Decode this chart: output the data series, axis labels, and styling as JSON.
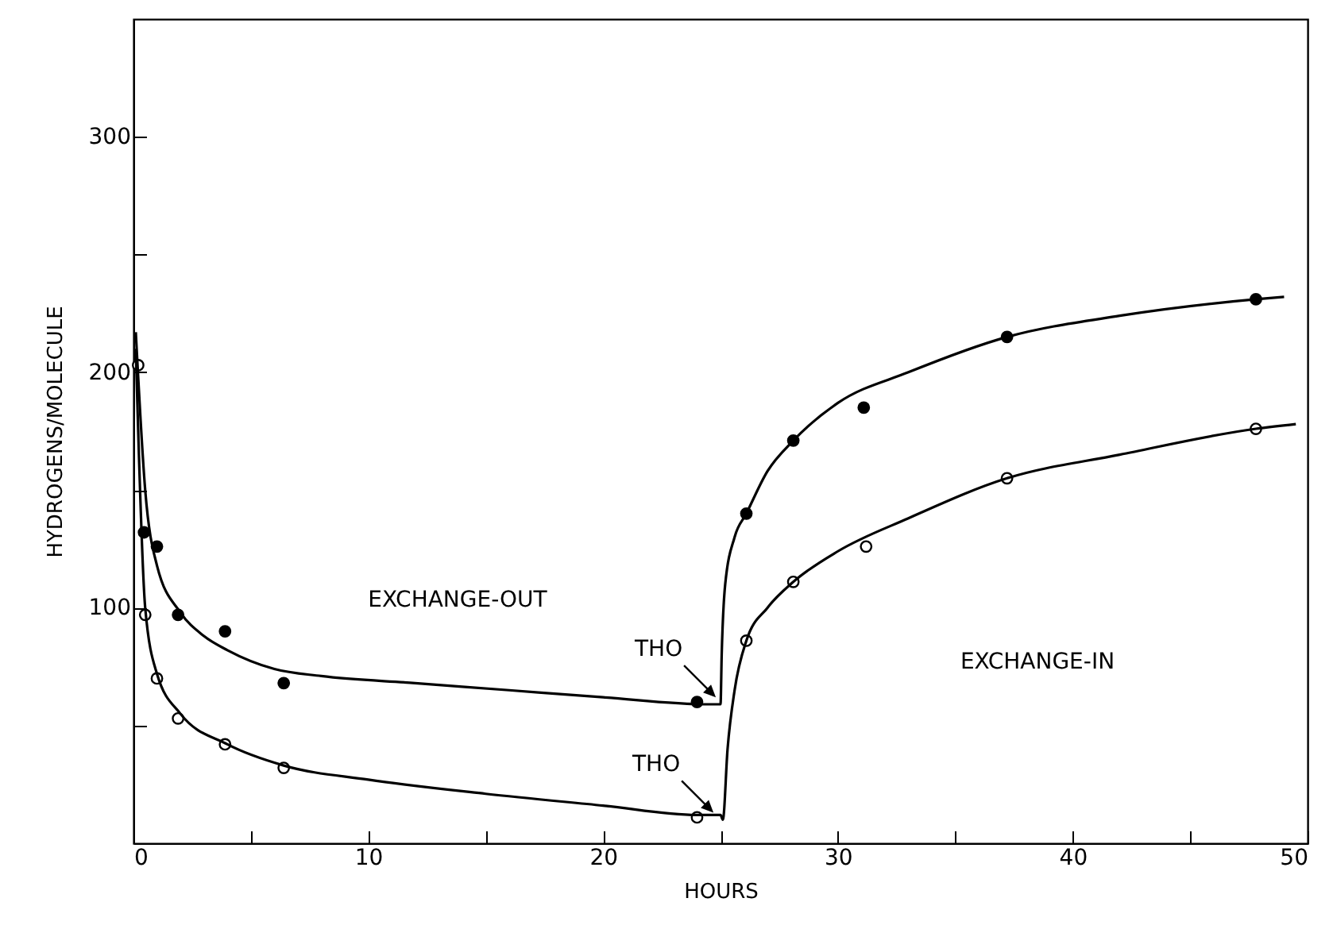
{
  "chart_data": {
    "type": "scatter",
    "xlabel": "HOURS",
    "ylabel": "HYDROGENS/MOLECULE",
    "xlim": [
      0,
      50
    ],
    "ylim": [
      0,
      350
    ],
    "xticks": [
      0,
      {
        "value": 5,
        "label": null
      },
      10,
      {
        "value": 15,
        "label": null
      },
      20,
      {
        "value": 25,
        "label": null
      },
      30,
      {
        "value": 35,
        "label": null
      },
      40,
      {
        "value": 45,
        "label": null
      },
      50
    ],
    "yticks": [
      {
        "value": 50,
        "label": null
      },
      100,
      {
        "value": 150,
        "label": null
      },
      200,
      {
        "value": 250,
        "label": null
      },
      300
    ],
    "grid": false,
    "annotations": [
      "EXCHANGE-OUT",
      "EXCHANGE-IN",
      {
        "text": "THO",
        "x": 24.8,
        "y": 62
      },
      {
        "text": "THO",
        "x": 24.7,
        "y": 13
      }
    ],
    "series": [
      {
        "marker": "circle",
        "color": "#000000",
        "x": [
          0.45,
          1.0,
          1.9,
          3.9,
          6.4,
          24.0,
          26.1,
          28.1,
          31.1,
          37.2,
          47.8
        ],
        "values": [
          132,
          126,
          97,
          90,
          68,
          60,
          140,
          171,
          185,
          215,
          231
        ]
      },
      {
        "marker": "circle",
        "color": "#ffffff",
        "x": [
          0.2,
          0.5,
          1.0,
          1.9,
          3.9,
          6.4,
          24.0,
          26.1,
          28.1,
          31.2,
          37.2,
          47.8
        ],
        "values": [
          203,
          97,
          70,
          53,
          42,
          32,
          11,
          86,
          111,
          126,
          155,
          176
        ]
      },
      {
        "type": "line",
        "marker": "none",
        "color": "#000000",
        "x": [
          0.1,
          0.5,
          1,
          2,
          3,
          4,
          6,
          8,
          12,
          16,
          20,
          24.5,
          25,
          25.05,
          25.2,
          25.6,
          26.1,
          27,
          28.1,
          30,
          33,
          37.2,
          42,
          47.8,
          49
        ],
        "values": [
          217,
          150,
          118,
          98,
          88,
          82,
          74,
          71,
          68,
          65,
          62,
          59,
          59,
          80,
          110,
          130,
          140,
          158,
          171,
          187,
          200,
          215,
          224,
          231,
          232
        ]
      },
      {
        "type": "line",
        "marker": "none",
        "color": "#000000",
        "x": [
          0.1,
          0.5,
          1,
          2,
          4,
          6.4,
          10,
          15,
          20,
          24,
          25,
          25.1,
          25.3,
          25.6,
          26.1,
          27,
          28.1,
          30,
          33,
          37.2,
          42,
          47.8,
          49.5
        ],
        "values": [
          210,
          100,
          72,
          55,
          42,
          33,
          27,
          21,
          16,
          12,
          12,
          10,
          40,
          65,
          86,
          100,
          111,
          124,
          138,
          155,
          165,
          176,
          178
        ]
      }
    ]
  }
}
